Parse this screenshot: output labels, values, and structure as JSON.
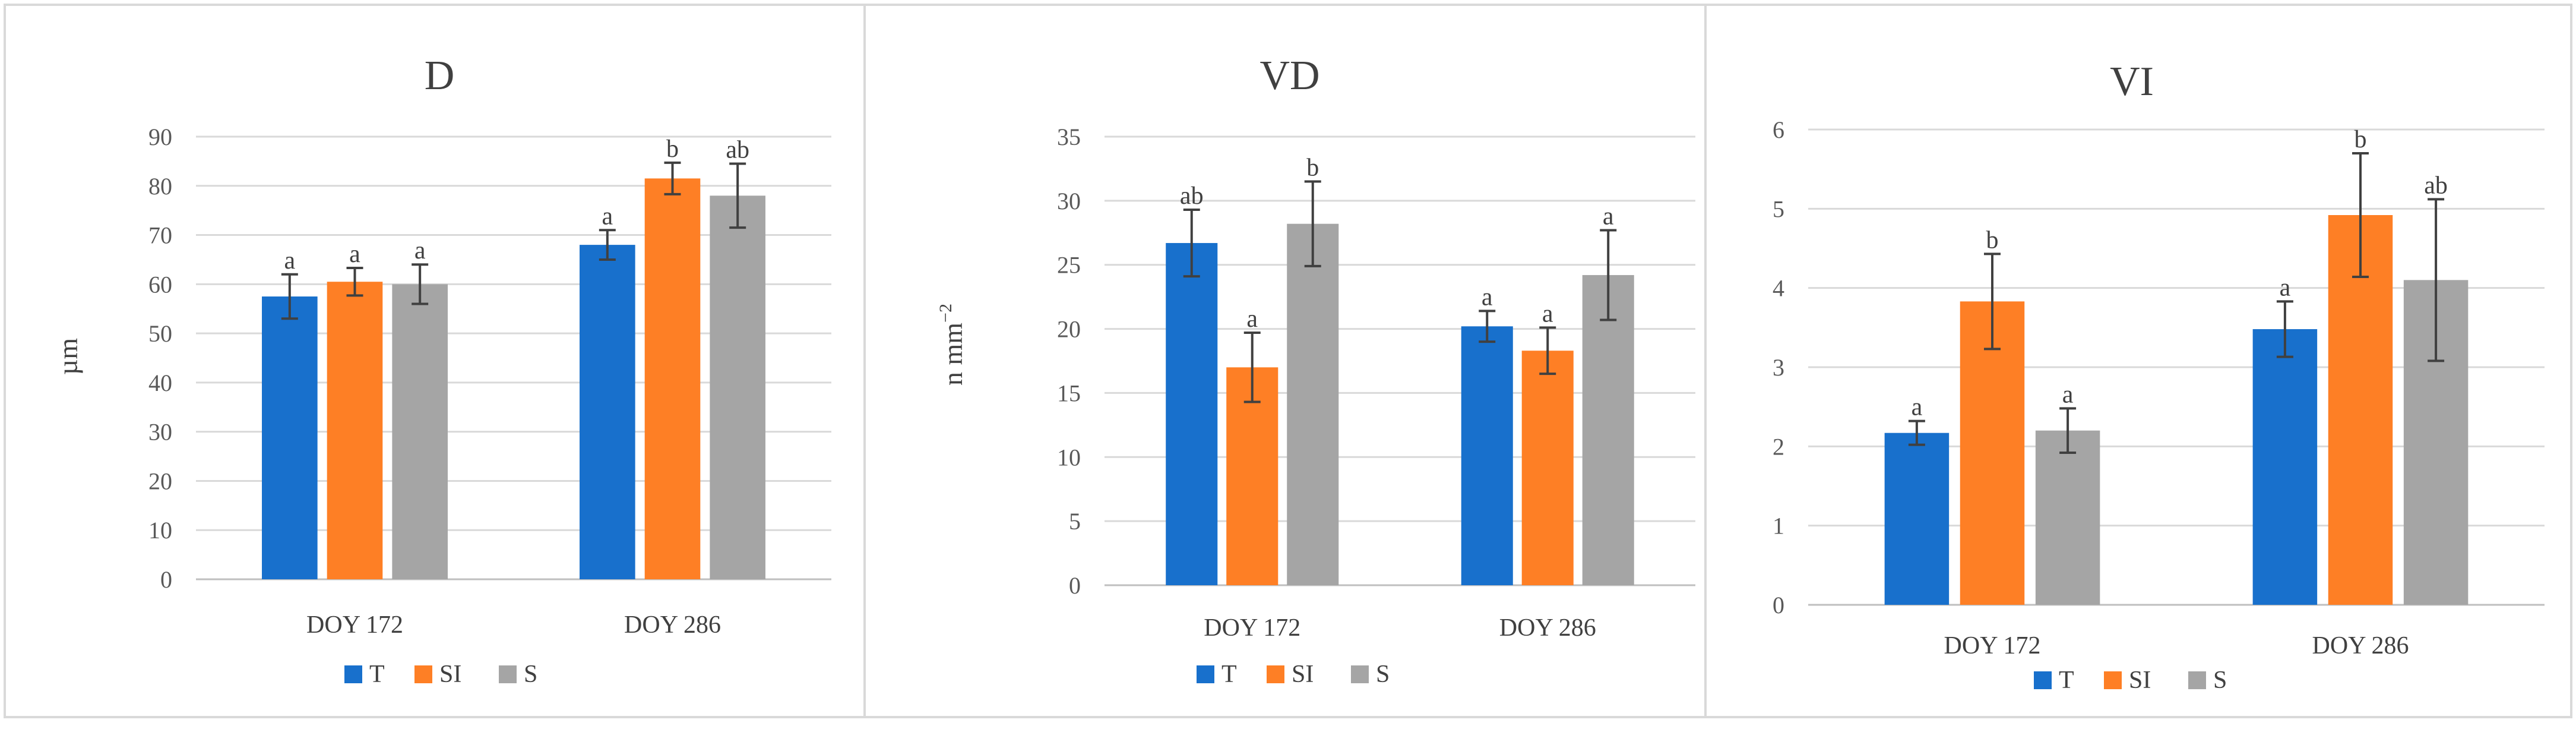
{
  "series_colors": {
    "T": "#1870cc",
    "SI": "#fe7f25",
    "S": "#a5a5a5"
  },
  "chart_data": [
    {
      "type": "bar",
      "title": "D",
      "ylabel": "µm",
      "ylabel_sup": "",
      "categories": [
        "DOY 172",
        "DOY 286"
      ],
      "ylim": [
        0,
        90
      ],
      "yticks": [
        0,
        10,
        20,
        30,
        40,
        50,
        60,
        70,
        80,
        90
      ],
      "grid": true,
      "legend": "bottom-center",
      "series": [
        {
          "name": "T",
          "values": [
            57.5,
            68
          ],
          "errors": [
            4.5,
            3
          ],
          "labels": [
            "a",
            "a"
          ]
        },
        {
          "name": "SI",
          "values": [
            60.5,
            81.5
          ],
          "errors": [
            2.8,
            3.2
          ],
          "labels": [
            "a",
            "b"
          ]
        },
        {
          "name": "S",
          "values": [
            60,
            78
          ],
          "errors": [
            4,
            6.5
          ],
          "labels": [
            "a",
            "ab"
          ]
        }
      ]
    },
    {
      "type": "bar",
      "title": "VD",
      "ylabel": "n mm",
      "ylabel_sup": "−2",
      "categories": [
        "DOY 172",
        "DOY 286"
      ],
      "ylim": [
        0,
        35
      ],
      "yticks": [
        0,
        5,
        10,
        15,
        20,
        25,
        30,
        35
      ],
      "grid": true,
      "legend": "bottom-center",
      "series": [
        {
          "name": "T",
          "values": [
            26.7,
            20.2
          ],
          "errors": [
            2.6,
            1.2
          ],
          "labels": [
            "ab",
            "a"
          ]
        },
        {
          "name": "SI",
          "values": [
            17,
            18.3
          ],
          "errors": [
            2.7,
            1.8
          ],
          "labels": [
            "a",
            "a"
          ]
        },
        {
          "name": "S",
          "values": [
            28.2,
            24.2
          ],
          "errors": [
            3.3,
            3.5
          ],
          "labels": [
            "b",
            "a"
          ]
        }
      ]
    },
    {
      "type": "bar",
      "title": "VI",
      "ylabel": "",
      "ylabel_sup": "",
      "categories": [
        "DOY 172",
        "DOY 286"
      ],
      "ylim": [
        0,
        6
      ],
      "yticks": [
        0,
        1,
        2,
        3,
        4,
        5,
        6
      ],
      "grid": true,
      "legend": "bottom-center",
      "series": [
        {
          "name": "T",
          "values": [
            2.17,
            3.48
          ],
          "errors": [
            0.15,
            0.35
          ],
          "labels": [
            "a",
            "a"
          ]
        },
        {
          "name": "SI",
          "values": [
            3.83,
            4.92
          ],
          "errors": [
            0.6,
            0.78
          ],
          "labels": [
            "b",
            "b"
          ]
        },
        {
          "name": "S",
          "values": [
            2.2,
            4.1
          ],
          "errors": [
            0.28,
            1.02
          ],
          "labels": [
            "a",
            "ab"
          ]
        }
      ]
    }
  ]
}
